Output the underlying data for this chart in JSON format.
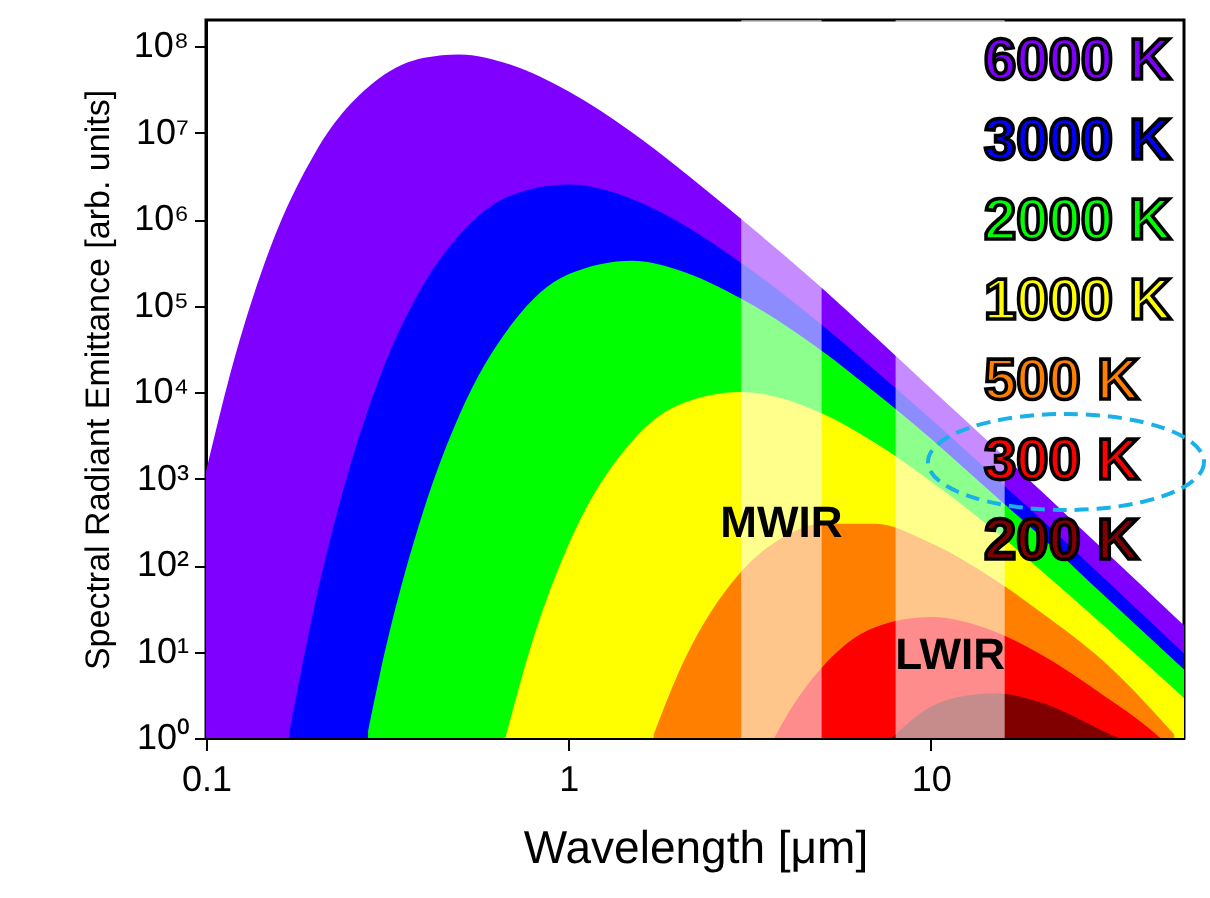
{
  "chart_data": {
    "type": "area",
    "xlabel": "Wavelength [μm]",
    "ylabel": "Spectral Radiant Emittance [arb. units]",
    "log": "xy",
    "grid": false,
    "legend": "top right",
    "xlim": [
      0.1,
      50
    ],
    "xticks": [
      0.1,
      1,
      10
    ],
    "ylim": [
      1,
      200000000
    ],
    "yticks": [
      {
        "value": 1,
        "label": "10⁰"
      },
      {
        "value": 10,
        "label": "10¹"
      },
      {
        "value": 100,
        "label": "10²"
      },
      {
        "value": 1000,
        "label": "10³"
      },
      {
        "value": 10000,
        "label": "10⁴"
      },
      {
        "value": 100000,
        "label": "10⁵"
      },
      {
        "value": 1000000,
        "label": "10⁶"
      },
      {
        "value": 10000000,
        "label": "10⁷"
      },
      {
        "value": 100000000,
        "label": "10⁸"
      }
    ],
    "series": [
      {
        "name": "6000 K",
        "color": "#8000ff",
        "x": [
          0.1,
          0.12,
          0.15,
          0.2,
          0.3,
          0.4,
          0.5,
          0.7,
          1,
          1.5,
          2,
          3,
          5,
          7,
          10,
          15,
          20,
          30,
          50
        ],
        "values": [
          1200,
          25000,
          450000,
          5800000,
          42000000,
          73000000,
          80000000,
          60000000,
          30000000,
          10000000,
          4000000,
          1000000,
          160000,
          44000,
          11000,
          2300,
          740,
          150,
          20
        ]
      },
      {
        "name": "3000 K",
        "color": "#0000ff",
        "x": [
          0.17,
          0.2,
          0.25,
          0.3,
          0.4,
          0.5,
          0.7,
          1,
          1.5,
          2,
          3,
          5,
          7,
          10,
          15,
          20,
          30,
          50
        ],
        "values": [
          1.2,
          36,
          1400,
          14000,
          180000,
          650000,
          1900000,
          2500000,
          1700000,
          940000,
          310000,
          60000,
          18000,
          4900,
          1050,
          350,
          71,
          9.5
        ]
      },
      {
        "name": "2000 K",
        "color": "#00ff00",
        "x": [
          0.28,
          0.3,
          0.4,
          0.5,
          0.7,
          1,
          1.5,
          2,
          3,
          5,
          7,
          10,
          15,
          20,
          30,
          50
        ],
        "values": [
          1.2,
          4.8,
          450,
          5400,
          62000,
          230000,
          330000,
          260000,
          120000,
          30000,
          10000,
          2900,
          640,
          220,
          45,
          6.2
        ]
      },
      {
        "name": "1000 K",
        "color": "#ffff00",
        "x": [
          0.67,
          0.8,
          1,
          1.5,
          2,
          3,
          5,
          7,
          10,
          15,
          20,
          30,
          50
        ],
        "values": [
          1,
          14,
          170,
          2700,
          7000,
          10000,
          5700,
          2600,
          930,
          250,
          89,
          20,
          2.9
        ]
      },
      {
        "name": "500 K",
        "color": "#ff8000",
        "x": [
          1.72,
          2,
          3,
          4,
          5,
          7,
          10,
          15,
          20,
          30,
          47
        ],
        "values": [
          1.1,
          5.3,
          84,
          220,
          300,
          300,
          180,
          68,
          29,
          7.7,
          1.1
        ]
      },
      {
        "name": "300 K",
        "color": "#ff0000",
        "x": [
          3.7,
          4,
          5,
          7,
          10,
          15,
          20,
          30,
          40,
          43
        ],
        "values": [
          1,
          1.8,
          6.5,
          19,
          25,
          17,
          9.4,
          3.1,
          1.3,
          1
        ]
      },
      {
        "name": "200 K",
        "color": "#800000",
        "x": [
          7.8,
          10,
          12,
          15,
          20,
          30,
          33
        ],
        "values": [
          1,
          2.3,
          3,
          3.3,
          2.6,
          1.2,
          1
        ]
      }
    ],
    "bands": [
      {
        "axis": "x",
        "from": 3,
        "to": 5,
        "label": "MWIR",
        "color": "#ffffff"
      },
      {
        "axis": "x",
        "from": 8,
        "to": 16,
        "label": "LWIR",
        "color": "#ffffff"
      }
    ]
  }
}
